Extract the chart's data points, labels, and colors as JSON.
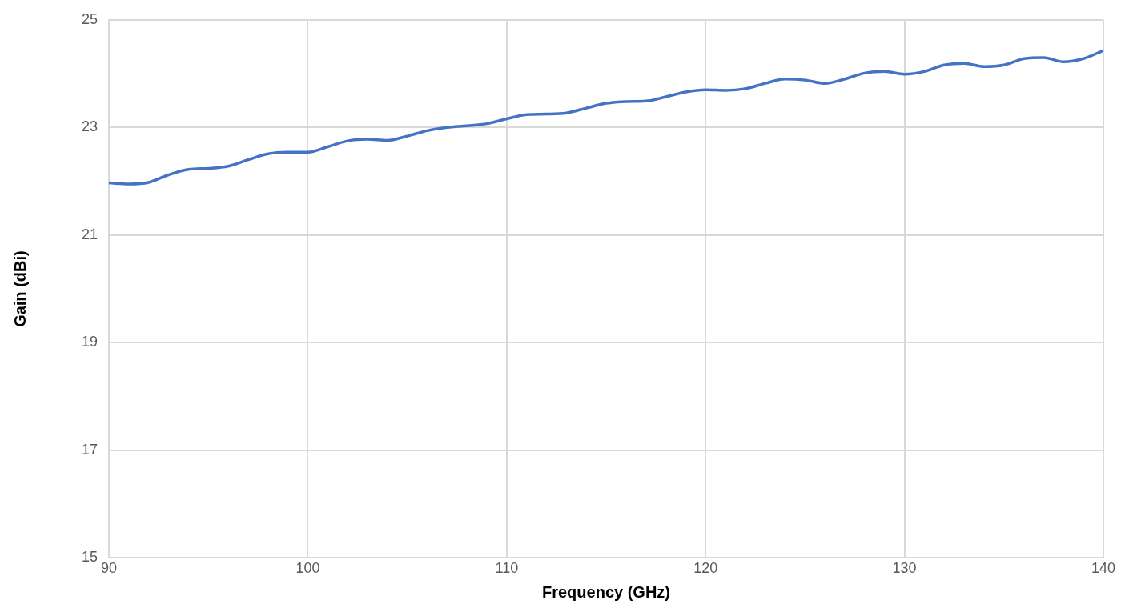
{
  "chart_data": {
    "type": "line",
    "xlabel": "Frequency (GHz)",
    "ylabel": "Gain (dBi)",
    "x": [
      90,
      91,
      92,
      93,
      94,
      95,
      96,
      97,
      98,
      99,
      100,
      101,
      102,
      103,
      104,
      105,
      106,
      107,
      108,
      109,
      110,
      111,
      112,
      113,
      114,
      115,
      116,
      117,
      118,
      119,
      120,
      121,
      122,
      123,
      124,
      125,
      126,
      127,
      128,
      129,
      130,
      131,
      132,
      133,
      134,
      135,
      136,
      137,
      138,
      139,
      140
    ],
    "series": [
      {
        "color": "#4472c4",
        "values": [
          21.97,
          21.95,
          21.98,
          22.12,
          22.22,
          22.24,
          22.28,
          22.4,
          22.51,
          22.54,
          22.54,
          22.64,
          22.75,
          22.78,
          22.76,
          22.84,
          22.94,
          23.0,
          23.03,
          23.07,
          23.16,
          23.24,
          23.25,
          23.27,
          23.36,
          23.45,
          23.48,
          23.49,
          23.57,
          23.66,
          23.7,
          23.69,
          23.72,
          23.82,
          23.9,
          23.88,
          23.82,
          23.9,
          24.01,
          24.04,
          23.99,
          24.04,
          24.16,
          24.19,
          24.13,
          24.16,
          24.28,
          24.3,
          24.22,
          24.28,
          24.43
        ]
      }
    ],
    "xlim": [
      90,
      140
    ],
    "xticks": [
      90,
      100,
      110,
      120,
      130,
      140
    ],
    "ylim": [
      15,
      25
    ],
    "yticks": [
      15,
      17,
      19,
      21,
      23,
      25
    ],
    "grid": true,
    "legend": false,
    "marker": "none",
    "line_style": "solid"
  }
}
